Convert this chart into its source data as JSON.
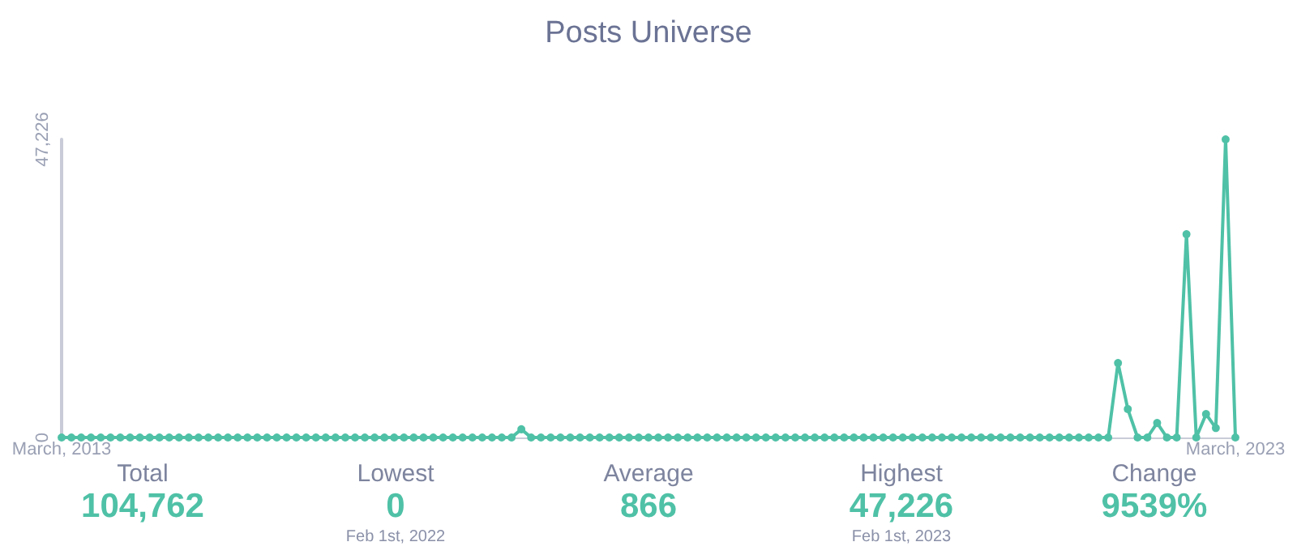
{
  "chart_data": {
    "type": "line",
    "title": "Posts Universe",
    "categories": [
      "March, 2013",
      null,
      null,
      null,
      null,
      null,
      null,
      null,
      null,
      null,
      null,
      null,
      null,
      null,
      null,
      null,
      null,
      null,
      null,
      null,
      null,
      null,
      null,
      null,
      null,
      null,
      null,
      null,
      null,
      null,
      null,
      null,
      null,
      null,
      null,
      null,
      null,
      null,
      null,
      null,
      null,
      null,
      null,
      null,
      null,
      null,
      null,
      null,
      null,
      null,
      null,
      null,
      null,
      null,
      null,
      null,
      null,
      null,
      null,
      null,
      null,
      null,
      null,
      null,
      null,
      null,
      null,
      null,
      null,
      null,
      null,
      null,
      null,
      null,
      null,
      null,
      null,
      null,
      null,
      null,
      null,
      null,
      null,
      null,
      null,
      null,
      null,
      null,
      null,
      null,
      null,
      null,
      null,
      null,
      null,
      null,
      null,
      null,
      null,
      null,
      null,
      null,
      null,
      null,
      null,
      null,
      null,
      null,
      null,
      null,
      null,
      null,
      null,
      null,
      null,
      null,
      null,
      null,
      null,
      null,
      "March, 2023"
    ],
    "series": [
      {
        "color": "#4fc1a6",
        "values": [
          0,
          0,
          0,
          0,
          0,
          0,
          0,
          0,
          0,
          0,
          0,
          0,
          0,
          0,
          0,
          0,
          0,
          0,
          0,
          0,
          0,
          0,
          0,
          0,
          0,
          0,
          0,
          0,
          0,
          0,
          0,
          0,
          0,
          0,
          0,
          0,
          0,
          0,
          0,
          0,
          0,
          0,
          0,
          0,
          0,
          0,
          0,
          1300,
          0,
          0,
          0,
          0,
          0,
          0,
          0,
          0,
          0,
          0,
          0,
          0,
          0,
          0,
          0,
          0,
          0,
          0,
          0,
          0,
          0,
          0,
          0,
          0,
          0,
          0,
          0,
          0,
          0,
          0,
          0,
          0,
          0,
          0,
          0,
          0,
          0,
          0,
          0,
          0,
          0,
          0,
          0,
          0,
          0,
          0,
          0,
          0,
          0,
          0,
          0,
          0,
          0,
          0,
          0,
          0,
          0,
          0,
          0,
          0,
          11800,
          4500,
          0,
          0,
          2300,
          0,
          0,
          32200,
          0,
          3700,
          1500,
          47226,
          0
        ]
      }
    ],
    "ylim": [
      0,
      47226
    ],
    "yticks": [
      0,
      {
        "value": 47226,
        "label": "47,226"
      }
    ],
    "grid": false,
    "marker": "circle",
    "line_style": "solid",
    "annotations": [
      "Total\n104,762",
      "Lowest\n0\nFeb 1st, 2022",
      "Average\n866",
      "Highest\n47,226\nFeb 1st, 2023",
      "Change\n9539%"
    ]
  }
}
